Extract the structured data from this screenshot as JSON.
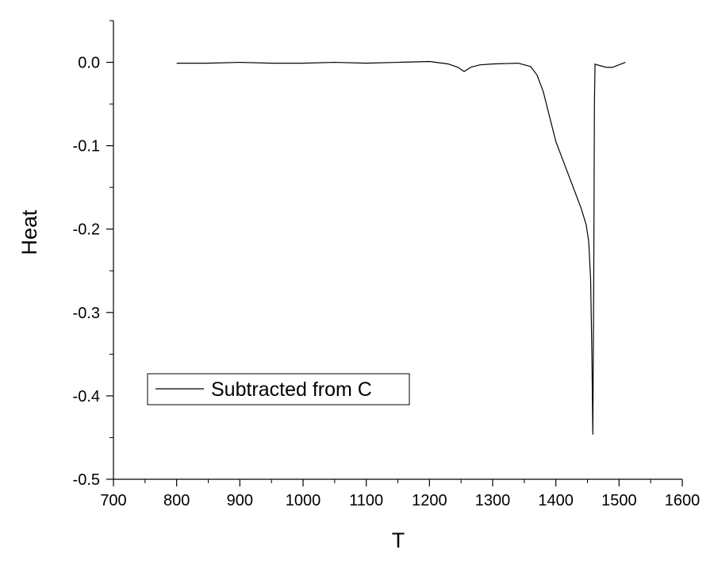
{
  "chart_data": {
    "type": "line",
    "title": "",
    "xlabel": "T",
    "ylabel": "Heat",
    "xlim": [
      700,
      1600
    ],
    "ylim": [
      -0.5,
      0.05
    ],
    "xticks": [
      700,
      800,
      900,
      1000,
      1100,
      1200,
      1300,
      1400,
      1500,
      1600
    ],
    "xtick_labels": [
      "700",
      "800",
      "900",
      "1000",
      "1100",
      "1200",
      "1300",
      "1400",
      "1500",
      "1600"
    ],
    "yticks": [
      0.0,
      -0.1,
      -0.2,
      -0.3,
      -0.4,
      -0.5
    ],
    "ytick_labels": [
      "0.0",
      "-0.1",
      "-0.2",
      "-0.3",
      "-0.4",
      "-0.5"
    ],
    "grid": false,
    "legend": {
      "position": "lower-left",
      "entries": [
        "Subtracted from C"
      ]
    },
    "line_color": "#000000",
    "series": [
      {
        "name": "Subtracted from C",
        "x": [
          800,
          850,
          900,
          950,
          1000,
          1050,
          1100,
          1150,
          1200,
          1230,
          1245,
          1255,
          1265,
          1280,
          1300,
          1340,
          1360,
          1370,
          1380,
          1390,
          1400,
          1410,
          1420,
          1430,
          1440,
          1448,
          1452,
          1455,
          1457,
          1458.5,
          1460,
          1461,
          1462,
          1465,
          1470,
          1480,
          1490,
          1500,
          1510
        ],
        "y": [
          -0.001,
          -0.001,
          0.0,
          -0.001,
          -0.001,
          0.0,
          -0.001,
          0.0,
          0.001,
          -0.002,
          -0.006,
          -0.011,
          -0.006,
          -0.003,
          -0.002,
          -0.001,
          -0.005,
          -0.015,
          -0.035,
          -0.065,
          -0.095,
          -0.115,
          -0.135,
          -0.155,
          -0.175,
          -0.195,
          -0.215,
          -0.26,
          -0.35,
          -0.446,
          -0.25,
          -0.05,
          -0.002,
          -0.003,
          -0.004,
          -0.006,
          -0.006,
          -0.003,
          0.0
        ]
      }
    ]
  }
}
